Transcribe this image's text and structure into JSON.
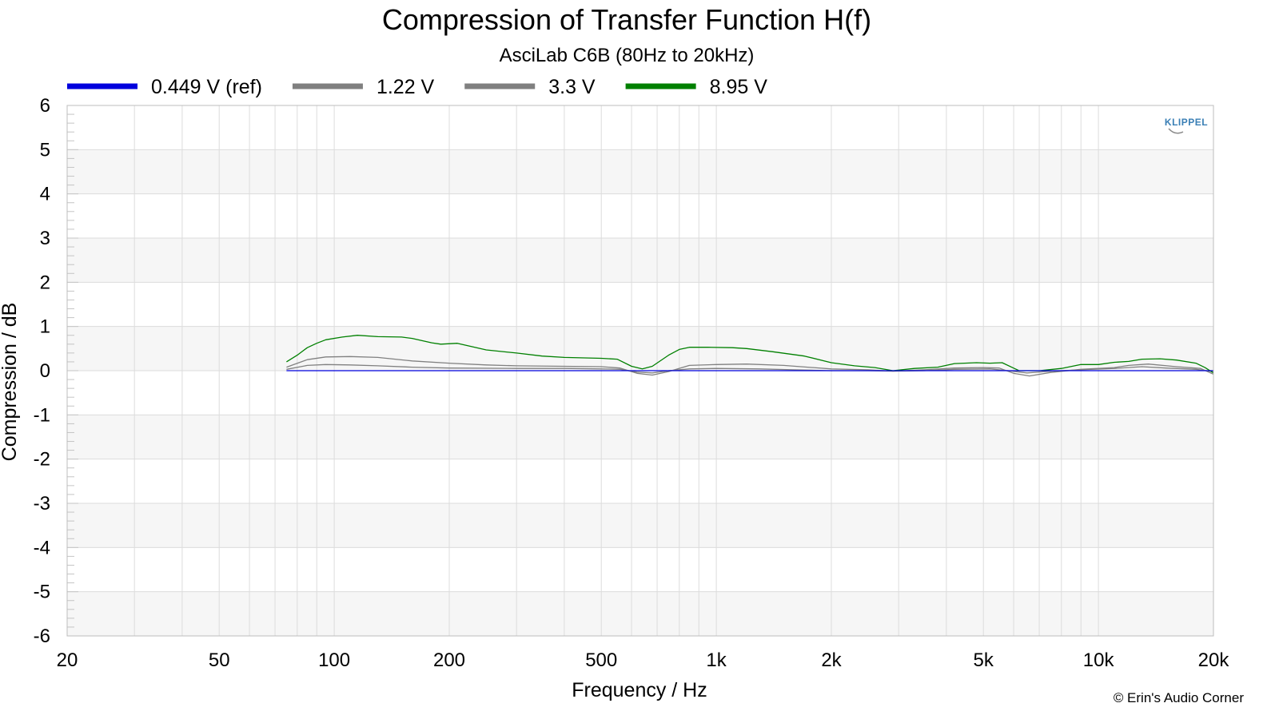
{
  "chart_data": {
    "type": "line",
    "title": "Compression of Transfer Function H(f)",
    "subtitle": "AsciLab C6B (80Hz to 20kHz)",
    "xlabel": "Frequency / Hz",
    "ylabel": "Compression / dB",
    "xscale": "log",
    "xlim": [
      20,
      20000
    ],
    "ylim": [
      -6,
      6
    ],
    "xticks": [
      {
        "value": 20,
        "label": "20"
      },
      {
        "value": 50,
        "label": "50"
      },
      {
        "value": 100,
        "label": "100"
      },
      {
        "value": 200,
        "label": "200"
      },
      {
        "value": 500,
        "label": "500"
      },
      {
        "value": 1000,
        "label": "1k"
      },
      {
        "value": 2000,
        "label": "2k"
      },
      {
        "value": 5000,
        "label": "5k"
      },
      {
        "value": 10000,
        "label": "10k"
      },
      {
        "value": 20000,
        "label": "20k"
      }
    ],
    "yticks": [
      {
        "value": 6,
        "label": "6"
      },
      {
        "value": 5,
        "label": "5"
      },
      {
        "value": 4,
        "label": "4"
      },
      {
        "value": 3,
        "label": "3"
      },
      {
        "value": 2,
        "label": "2"
      },
      {
        "value": 1,
        "label": "1"
      },
      {
        "value": 0,
        "label": "0"
      },
      {
        "value": -1,
        "label": "-1"
      },
      {
        "value": -2,
        "label": "-2"
      },
      {
        "value": -3,
        "label": "-3"
      },
      {
        "value": -4,
        "label": "-4"
      },
      {
        "value": -5,
        "label": "-5"
      },
      {
        "value": -6,
        "label": "-6"
      }
    ],
    "grid": true,
    "legend_position": "top",
    "series": [
      {
        "name": "0.449 V (ref)",
        "color": "#0000dd",
        "points": [
          [
            75,
            0
          ],
          [
            20000,
            0
          ]
        ]
      },
      {
        "name": "1.22 V",
        "color": "#808080",
        "points": [
          [
            75,
            0.03
          ],
          [
            85,
            0.12
          ],
          [
            95,
            0.14
          ],
          [
            110,
            0.13
          ],
          [
            130,
            0.11
          ],
          [
            160,
            0.08
          ],
          [
            200,
            0.06
          ],
          [
            300,
            0.05
          ],
          [
            400,
            0.05
          ],
          [
            500,
            0.04
          ],
          [
            560,
            0.03
          ],
          [
            620,
            -0.03
          ],
          [
            680,
            -0.05
          ],
          [
            750,
            0.0
          ],
          [
            850,
            0.04
          ],
          [
            1000,
            0.05
          ],
          [
            1300,
            0.04
          ],
          [
            1600,
            0.02
          ],
          [
            2000,
            0.0
          ],
          [
            2500,
            0.0
          ],
          [
            2900,
            -0.01
          ],
          [
            3500,
            0.0
          ],
          [
            4200,
            0.03
          ],
          [
            5200,
            0.04
          ],
          [
            5800,
            0.0
          ],
          [
            6500,
            -0.05
          ],
          [
            7500,
            -0.01
          ],
          [
            9000,
            0.02
          ],
          [
            11000,
            0.05
          ],
          [
            13000,
            0.09
          ],
          [
            15000,
            0.06
          ],
          [
            18000,
            0.03
          ],
          [
            20000,
            -0.02
          ]
        ]
      },
      {
        "name": "3.3 V",
        "color": "#808080",
        "points": [
          [
            75,
            0.08
          ],
          [
            85,
            0.25
          ],
          [
            95,
            0.31
          ],
          [
            110,
            0.32
          ],
          [
            130,
            0.3
          ],
          [
            160,
            0.22
          ],
          [
            200,
            0.17
          ],
          [
            250,
            0.13
          ],
          [
            300,
            0.11
          ],
          [
            400,
            0.1
          ],
          [
            500,
            0.09
          ],
          [
            560,
            0.06
          ],
          [
            620,
            -0.06
          ],
          [
            680,
            -0.1
          ],
          [
            750,
            -0.02
          ],
          [
            850,
            0.12
          ],
          [
            1000,
            0.14
          ],
          [
            1200,
            0.15
          ],
          [
            1500,
            0.12
          ],
          [
            2000,
            0.04
          ],
          [
            2500,
            0.02
          ],
          [
            2900,
            -0.01
          ],
          [
            3500,
            0.02
          ],
          [
            4200,
            0.06
          ],
          [
            5000,
            0.07
          ],
          [
            5500,
            0.06
          ],
          [
            6000,
            -0.06
          ],
          [
            6600,
            -0.12
          ],
          [
            7500,
            -0.04
          ],
          [
            9000,
            0.03
          ],
          [
            11000,
            0.07
          ],
          [
            12000,
            0.12
          ],
          [
            13500,
            0.15
          ],
          [
            16000,
            0.09
          ],
          [
            18500,
            0.05
          ],
          [
            20000,
            -0.08
          ]
        ]
      },
      {
        "name": "8.95 V",
        "color": "#008000",
        "points": [
          [
            75,
            0.2
          ],
          [
            80,
            0.35
          ],
          [
            85,
            0.52
          ],
          [
            90,
            0.62
          ],
          [
            95,
            0.7
          ],
          [
            105,
            0.76
          ],
          [
            115,
            0.8
          ],
          [
            130,
            0.77
          ],
          [
            150,
            0.76
          ],
          [
            160,
            0.73
          ],
          [
            180,
            0.63
          ],
          [
            190,
            0.6
          ],
          [
            210,
            0.62
          ],
          [
            250,
            0.47
          ],
          [
            300,
            0.4
          ],
          [
            350,
            0.33
          ],
          [
            400,
            0.3
          ],
          [
            500,
            0.28
          ],
          [
            550,
            0.26
          ],
          [
            600,
            0.1
          ],
          [
            640,
            0.04
          ],
          [
            680,
            0.1
          ],
          [
            750,
            0.35
          ],
          [
            800,
            0.48
          ],
          [
            850,
            0.53
          ],
          [
            950,
            0.53
          ],
          [
            1100,
            0.52
          ],
          [
            1200,
            0.5
          ],
          [
            1400,
            0.43
          ],
          [
            1700,
            0.33
          ],
          [
            2000,
            0.18
          ],
          [
            2300,
            0.11
          ],
          [
            2600,
            0.07
          ],
          [
            2900,
            0.0
          ],
          [
            3300,
            0.05
          ],
          [
            3800,
            0.08
          ],
          [
            4200,
            0.16
          ],
          [
            4800,
            0.18
          ],
          [
            5200,
            0.17
          ],
          [
            5600,
            0.18
          ],
          [
            6200,
            0.0
          ],
          [
            7000,
            0.0
          ],
          [
            8000,
            0.05
          ],
          [
            9000,
            0.14
          ],
          [
            10000,
            0.14
          ],
          [
            11000,
            0.19
          ],
          [
            12000,
            0.21
          ],
          [
            13000,
            0.26
          ],
          [
            14500,
            0.27
          ],
          [
            16000,
            0.24
          ],
          [
            18000,
            0.17
          ],
          [
            19000,
            0.07
          ],
          [
            20000,
            -0.05
          ]
        ]
      }
    ]
  },
  "logo": {
    "text": "KLIPPEL",
    "color": "#3a7fb5"
  },
  "credit": "© Erin's Audio Corner"
}
